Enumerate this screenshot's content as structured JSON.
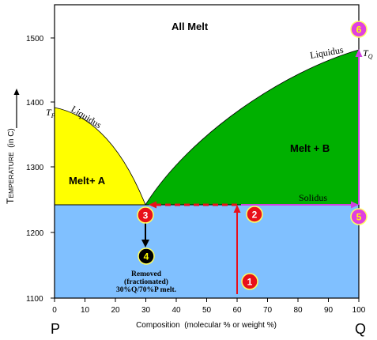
{
  "regions": {
    "all_melt": "All Melt",
    "melt_a": "Melt+ A",
    "melt_b": "Melt + B"
  },
  "curves": {
    "liquidus_left": "Liquidus",
    "liquidus_right": "Liquidus",
    "solidus": "Solidus"
  },
  "temps": {
    "tp_main": "T",
    "tp_sub": "P",
    "tq_main": "T",
    "tq_sub": "Q"
  },
  "axes": {
    "y_title_parts": [
      "T",
      "EMPERATURE",
      "  (in C)"
    ],
    "x_title": "Composition  (molecular % or weight %)",
    "left_end": "P",
    "right_end": "Q",
    "x_ticks": [
      "0",
      "10",
      "20",
      "30",
      "40",
      "50",
      "60",
      "70",
      "80",
      "90",
      "100"
    ],
    "y_ticks": [
      "1100",
      "1200",
      "1300",
      "1400",
      "1500"
    ]
  },
  "markers": [
    {
      "num": "1",
      "color": "#e8101a"
    },
    {
      "num": "2",
      "color": "#e8101a"
    },
    {
      "num": "3",
      "color": "#e8101a"
    },
    {
      "num": "4",
      "color": "#000000"
    },
    {
      "num": "5",
      "color": "#e040e0"
    },
    {
      "num": "6",
      "color": "#e040e0"
    }
  ],
  "note": {
    "line1": "Removed",
    "line2": "(fractionated)",
    "line3": "30%Q/70%P melt."
  },
  "colors": {
    "all_melt": "#ffffff",
    "melt_a": "#ffff00",
    "melt_b": "#00b000",
    "solid": "#80c0ff",
    "red_path": "#e8101a",
    "magenta_path": "#d040e0"
  },
  "chart_data": {
    "type": "phase-diagram",
    "x_label": "Composition  (molecular % or weight %)",
    "y_label": "Temperature (in C)",
    "xlim": [
      0,
      100
    ],
    "ylim": [
      1100,
      1600
    ],
    "eutectic": {
      "x": 30,
      "y": 1240
    },
    "tp": {
      "x": 0,
      "y": 1392
    },
    "tq": {
      "x": 100,
      "y": 1480
    },
    "path_points": [
      {
        "label": "1",
        "x": 60,
        "y": 1110
      },
      {
        "label": "2",
        "x": 60,
        "y": 1240
      },
      {
        "label": "3",
        "x": 30,
        "y": 1240
      },
      {
        "label": "5",
        "x": 100,
        "y": 1240
      },
      {
        "label": "6",
        "x": 100,
        "y": 1480
      }
    ]
  }
}
